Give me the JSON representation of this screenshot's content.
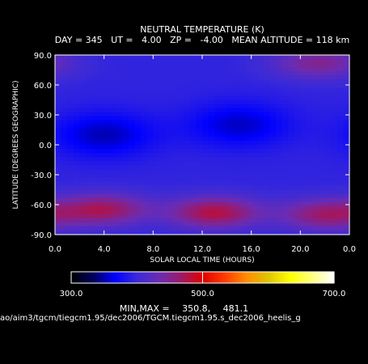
{
  "chart_data": {
    "type": "heatmap",
    "title": "NEUTRAL TEMPERATURE (K)",
    "subtitle": "DAY = 345   UT =   4.00   ZP =   -4.00   MEAN ALTITUDE = 118 km",
    "xlabel": "SOLAR LOCAL TIME (HOURS)",
    "ylabel": "LATITUDE (DEGREES GEOGRAPHIC)",
    "xlim": [
      0,
      24
    ],
    "ylim": [
      -90,
      90
    ],
    "x_ticks": [
      "0.0",
      "4.0",
      "8.0",
      "12.0",
      "16.0",
      "20.0",
      "0.0"
    ],
    "y_ticks": [
      "90.0",
      "60.0",
      "30.0",
      "0.0",
      "-30.0",
      "-60.0",
      "-90.0"
    ],
    "colorbar": {
      "min": 300.0,
      "max": 700.0,
      "tick_labels": [
        "300.0",
        "500.0",
        "700.0"
      ],
      "colors": [
        "#000000",
        "#00005a",
        "#0000ff",
        "#3a2ad8",
        "#6a2cb4",
        "#9b1a6a",
        "#e00000",
        "#ff3a00",
        "#ff8c00",
        "#e0c400",
        "#ffff00",
        "#ffff80",
        "#ffffff"
      ]
    },
    "min_label": "MIN,MAX =",
    "min_value": "350.8,",
    "max_value": "481.1",
    "features": [
      {
        "lt": 4.0,
        "lat": 10,
        "temp": 352,
        "desc": "cold"
      },
      {
        "lt": 15.0,
        "lat": 20,
        "temp": 355,
        "desc": "cold"
      },
      {
        "lt": 13.0,
        "lat": -68,
        "temp": 480,
        "desc": "warm"
      },
      {
        "lt": 4.0,
        "lat": -65,
        "temp": 470,
        "desc": "warm"
      },
      {
        "lt": 22.0,
        "lat": -70,
        "temp": 465,
        "desc": "warm"
      },
      {
        "lt": 21.5,
        "lat": 82,
        "temp": 450,
        "desc": "warm"
      }
    ]
  },
  "footer": {
    "path": "ao/aim3/tgcm/tiegcm1.95/dec2006/TGCM.tiegcm1.95.s_dec2006_heelis_g"
  }
}
